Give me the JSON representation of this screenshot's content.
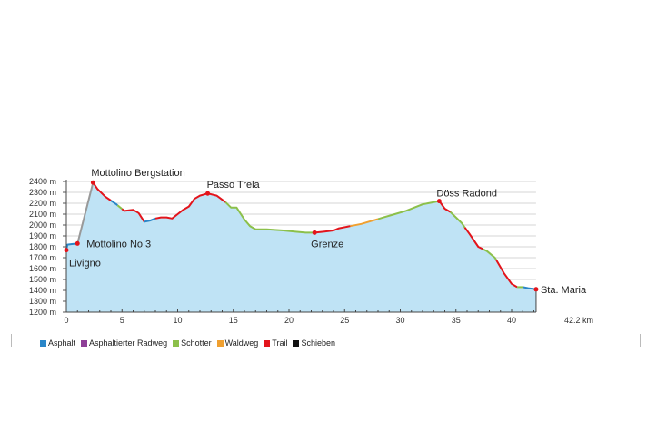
{
  "chart_data": {
    "type": "area",
    "title": "",
    "xlabel": "",
    "ylabel": "",
    "x_unit_label": "42.2 km",
    "xlim": [
      0,
      42.2
    ],
    "ylim": [
      1200,
      2400
    ],
    "yticks": [
      "2400 m",
      "2300 m",
      "2200 m",
      "2100 m",
      "2000 m",
      "1900 m",
      "1800 m",
      "1700 m",
      "1600 m",
      "1500 m",
      "1400 m",
      "1300 m",
      "1200 m"
    ],
    "xticks": [
      "0",
      "5",
      "10",
      "15",
      "20",
      "25",
      "30",
      "35",
      "40"
    ],
    "grid": true,
    "fill_color": "#bfe3f5",
    "profile": {
      "x": [
        0,
        0.1,
        0.5,
        1.0,
        2.4,
        2.8,
        3.5,
        4.5,
        5.2,
        6.0,
        6.5,
        7.0,
        7.5,
        8.0,
        8.5,
        9.0,
        9.5,
        10.0,
        10.5,
        11.0,
        11.5,
        12.0,
        12.7,
        13.5,
        14.3,
        14.8,
        15.3,
        16.0,
        16.5,
        17.0,
        18.0,
        19.5,
        20.5,
        21.5,
        22.3,
        23.2,
        24.0,
        24.5,
        25.5,
        26.5,
        27.5,
        28.5,
        29.5,
        30.5,
        31.5,
        32.0,
        32.5,
        33.5,
        34.0,
        34.5,
        35.5,
        36.2,
        37.0,
        37.8,
        38.5,
        39.3,
        40.0,
        40.5,
        41.0,
        41.5,
        42.2
      ],
      "elevation": [
        1770,
        1820,
        1825,
        1830,
        2390,
        2330,
        2260,
        2190,
        2130,
        2140,
        2110,
        2030,
        2040,
        2060,
        2070,
        2070,
        2060,
        2100,
        2140,
        2170,
        2240,
        2270,
        2290,
        2270,
        2210,
        2160,
        2160,
        2050,
        1990,
        1960,
        1960,
        1950,
        1940,
        1930,
        1930,
        1940,
        1950,
        1970,
        1990,
        2010,
        2040,
        2070,
        2100,
        2130,
        2170,
        2190,
        2200,
        2220,
        2150,
        2120,
        2020,
        1920,
        1800,
        1760,
        1700,
        1560,
        1460,
        1430,
        1430,
        1420,
        1410
      ]
    },
    "surface_segments": [
      {
        "from": 0,
        "to": 1.0,
        "type": "Asphalt"
      },
      {
        "from": 1.0,
        "to": 2.4,
        "type": "Schieben"
      },
      {
        "from": 2.4,
        "to": 4.0,
        "type": "Trail"
      },
      {
        "from": 4.0,
        "to": 4.6,
        "type": "Asphalt"
      },
      {
        "from": 4.6,
        "to": 5.0,
        "type": "Schotter"
      },
      {
        "from": 5.0,
        "to": 7.0,
        "type": "Trail"
      },
      {
        "from": 7.0,
        "to": 8.0,
        "type": "Asphalt"
      },
      {
        "from": 8.0,
        "to": 14.3,
        "type": "Trail"
      },
      {
        "from": 14.3,
        "to": 22.3,
        "type": "Schotter"
      },
      {
        "from": 22.3,
        "to": 25.5,
        "type": "Trail"
      },
      {
        "from": 25.5,
        "to": 28.0,
        "type": "Waldweg"
      },
      {
        "from": 28.0,
        "to": 33.5,
        "type": "Schotter"
      },
      {
        "from": 33.5,
        "to": 34.5,
        "type": "Trail"
      },
      {
        "from": 34.5,
        "to": 35.8,
        "type": "Schotter"
      },
      {
        "from": 35.8,
        "to": 37.4,
        "type": "Trail"
      },
      {
        "from": 37.4,
        "to": 38.6,
        "type": "Schotter"
      },
      {
        "from": 38.6,
        "to": 40.5,
        "type": "Trail"
      },
      {
        "from": 40.5,
        "to": 41.0,
        "type": "Schotter"
      },
      {
        "from": 41.0,
        "to": 42.2,
        "type": "Asphalt"
      }
    ],
    "annotations": [
      {
        "label": "Livigno",
        "x": 0,
        "elevation": 1770
      },
      {
        "label": "Mottolino No 3",
        "x": 1.0,
        "elevation": 1830
      },
      {
        "label": "Mottolino Bergstation",
        "x": 2.4,
        "elevation": 2390
      },
      {
        "label": "Passo Trela",
        "x": 12.7,
        "elevation": 2290
      },
      {
        "label": "Grenze",
        "x": 22.3,
        "elevation": 1930
      },
      {
        "label": "Döss Radond",
        "x": 33.5,
        "elevation": 2220
      },
      {
        "label": "Sta. Maria",
        "x": 42.2,
        "elevation": 1410
      }
    ],
    "legend": [
      {
        "label": "Asphalt",
        "color": "#2a86c8"
      },
      {
        "label": "Asphaltierter Radweg",
        "color": "#8e3f97"
      },
      {
        "label": "Schotter",
        "color": "#8cc04a"
      },
      {
        "label": "Waldweg",
        "color": "#f0a030"
      },
      {
        "label": "Trail",
        "color": "#e3141b"
      },
      {
        "label": "Schieben",
        "color": "#111111"
      }
    ],
    "legend_position": "bottom-left"
  }
}
